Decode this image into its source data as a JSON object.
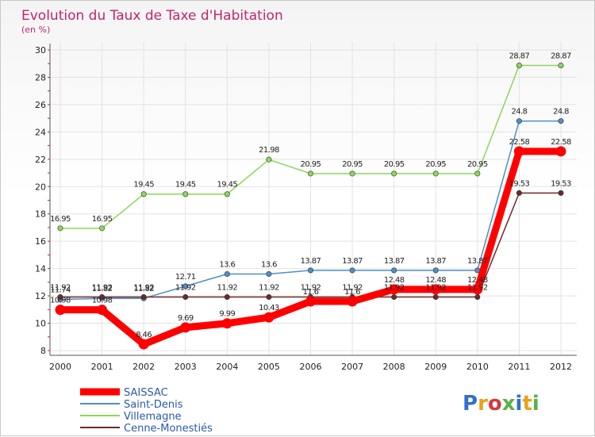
{
  "chart_data": {
    "type": "line",
    "title": "Evolution du Taux de Taxe d'Habitation",
    "subtitle": "(en %)",
    "x": [
      "2000",
      "2001",
      "2002",
      "2003",
      "2004",
      "2005",
      "2006",
      "2007",
      "2008",
      "2009",
      "2010",
      "2011",
      "2012"
    ],
    "ylim": [
      8,
      30
    ],
    "yticks": [
      "8",
      "10",
      "12",
      "14",
      "16",
      "18",
      "20",
      "22",
      "24",
      "26",
      "28",
      "30"
    ],
    "legend_position": "bottom-left",
    "series": [
      {
        "name": "SAISSAC",
        "color": "#ff0000",
        "values": [
          10.98,
          10.98,
          8.46,
          9.69,
          9.99,
          10.43,
          11.6,
          11.6,
          12.48,
          12.48,
          12.48,
          22.58,
          22.58
        ],
        "labels": [
          "10.98",
          "10.98",
          "8.46",
          "9.69",
          "9.99",
          "10.43",
          "11.6",
          "11.6",
          "12.48",
          "12.48",
          "12.48",
          "22.58",
          "22.58"
        ]
      },
      {
        "name": "Saint-Denis",
        "color": "#4f8fc4",
        "values": [
          11.74,
          11.82,
          11.82,
          12.71,
          13.6,
          13.6,
          13.87,
          13.87,
          13.87,
          13.87,
          13.87,
          24.8,
          24.8
        ],
        "labels": [
          "11.74",
          "11.82",
          "11.82",
          "12.71",
          "13.6",
          "13.6",
          "13.87",
          "13.87",
          "13.87",
          "13.87",
          "13.87",
          "24.8",
          "24.8"
        ]
      },
      {
        "name": "Villemagne",
        "color": "#8ed65a",
        "values": [
          16.95,
          16.95,
          19.45,
          19.45,
          19.45,
          21.98,
          20.95,
          20.95,
          20.95,
          20.95,
          20.95,
          28.87,
          28.87
        ],
        "labels": [
          "16.95",
          "16.95",
          "19.45",
          "19.45",
          "19.45",
          "21.98",
          "20.95",
          "20.95",
          "20.95",
          "20.95",
          "20.95",
          "28.87",
          "28.87"
        ]
      },
      {
        "name": "Cenne-Monestiés",
        "color": "#6b2a2a",
        "values": [
          11.92,
          11.92,
          11.92,
          11.92,
          11.92,
          11.92,
          11.92,
          11.92,
          11.92,
          11.92,
          11.92,
          19.53,
          19.53
        ],
        "labels": [
          "11.92",
          "11.92",
          "11.92",
          "11.92",
          "11.92",
          "11.92",
          "11.92",
          "11.92",
          "11.92",
          "11.92",
          "11.92",
          "19.53",
          "19.53"
        ]
      }
    ]
  },
  "logo": {
    "text": "Proxiti"
  }
}
